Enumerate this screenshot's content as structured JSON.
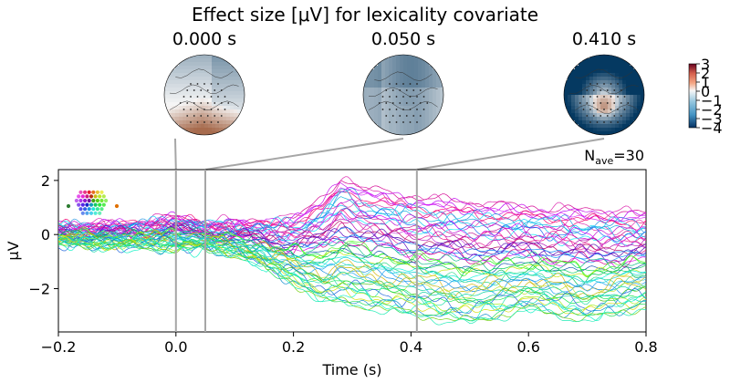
{
  "chart_data": {
    "type": "line",
    "title": "Effect size [μV] for lexicality covariate",
    "xlabel": "Time (s)",
    "ylabel": "µV",
    "xlim": [
      -0.2,
      0.8
    ],
    "ylim": [
      -3.6,
      2.4
    ],
    "x_ticks": [
      -0.2,
      0.0,
      0.2,
      0.4,
      0.6,
      0.8
    ],
    "x_tick_labels": [
      "−0.2",
      "0.0",
      "0.2",
      "0.4",
      "0.6",
      "0.8"
    ],
    "y_ticks": [
      -2,
      0,
      2
    ],
    "y_tick_labels": [
      "−2",
      "0",
      "2"
    ],
    "annotation": "N",
    "annotation_sub": "ave",
    "annotation_value": "=30",
    "n_channels": 59,
    "topomap_times": [
      0.0,
      0.05,
      0.41
    ],
    "topomap_labels": [
      "0.000 s",
      "0.050 s",
      "0.410 s"
    ],
    "colorbar_ticks": [
      3,
      2,
      1,
      0,
      -1,
      -2,
      -3,
      -4
    ],
    "colorbar_tick_labels": [
      "3",
      "2",
      "1",
      "0",
      "−1",
      "−2",
      "−3",
      "−4"
    ],
    "colormap": [
      "#67001f",
      "#d6604d",
      "#f4a582",
      "#f7f7f7",
      "#92c5de",
      "#4393c3",
      "#053061"
    ],
    "grid": false,
    "legend": "none",
    "channel_inset": "top-left",
    "envelope_upper": [
      [
        -0.2,
        0.4
      ],
      [
        -0.1,
        0.4
      ],
      [
        0.0,
        0.7
      ],
      [
        0.05,
        0.5
      ],
      [
        0.1,
        0.5
      ],
      [
        0.2,
        0.6
      ],
      [
        0.25,
        1.3
      ],
      [
        0.28,
        2.1
      ],
      [
        0.32,
        1.7
      ],
      [
        0.4,
        1.4
      ],
      [
        0.5,
        1.2
      ],
      [
        0.6,
        1.0
      ],
      [
        0.7,
        0.9
      ],
      [
        0.8,
        0.8
      ]
    ],
    "envelope_lower": [
      [
        -0.2,
        -0.4
      ],
      [
        -0.1,
        -0.5
      ],
      [
        0.0,
        -0.6
      ],
      [
        0.05,
        -0.6
      ],
      [
        0.1,
        -0.8
      ],
      [
        0.2,
        -1.8
      ],
      [
        0.25,
        -2.5
      ],
      [
        0.3,
        -2.6
      ],
      [
        0.4,
        -3.0
      ],
      [
        0.5,
        -3.3
      ],
      [
        0.6,
        -2.8
      ],
      [
        0.7,
        -3.2
      ],
      [
        0.8,
        -2.7
      ]
    ]
  }
}
